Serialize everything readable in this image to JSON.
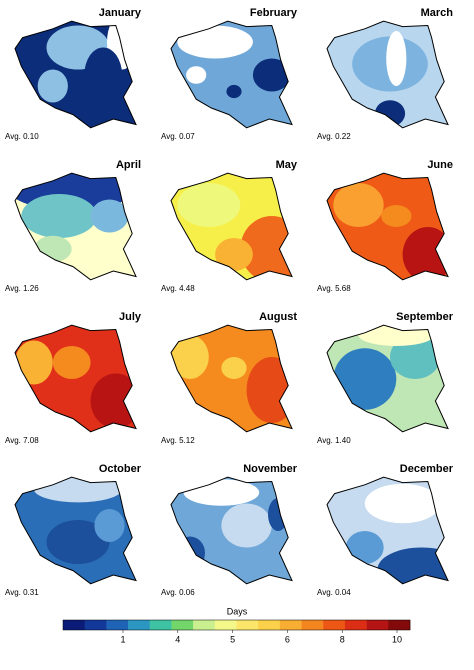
{
  "panels": [
    {
      "title": "January",
      "avg": "Avg. 0.10"
    },
    {
      "title": "February",
      "avg": "Avg. 0.07"
    },
    {
      "title": "March",
      "avg": "Avg. 0.22"
    },
    {
      "title": "April",
      "avg": "Avg. 1.26"
    },
    {
      "title": "May",
      "avg": "Avg. 4.48"
    },
    {
      "title": "June",
      "avg": "Avg. 5.68"
    },
    {
      "title": "July",
      "avg": "Avg. 7.08"
    },
    {
      "title": "August",
      "avg": "Avg. 5.12"
    },
    {
      "title": "September",
      "avg": "Avg. 1.40"
    },
    {
      "title": "October",
      "avg": "Avg. 0.31"
    },
    {
      "title": "November",
      "avg": "Avg. 0.06"
    },
    {
      "title": "December",
      "avg": "Avg. 0.04"
    }
  ],
  "colorbar": {
    "title": "Days",
    "ticks": [
      1,
      4,
      5,
      6,
      8,
      10
    ],
    "colors": [
      "#0b1c78",
      "#12399a",
      "#1e63b5",
      "#2c96c2",
      "#3dc3a4",
      "#72d66a",
      "#caef8f",
      "#f4f88a",
      "#fbe66a",
      "#fbd04a",
      "#f8ae33",
      "#f4861f",
      "#ed5716",
      "#dc2e14",
      "#b51414",
      "#820a0a"
    ]
  }
}
